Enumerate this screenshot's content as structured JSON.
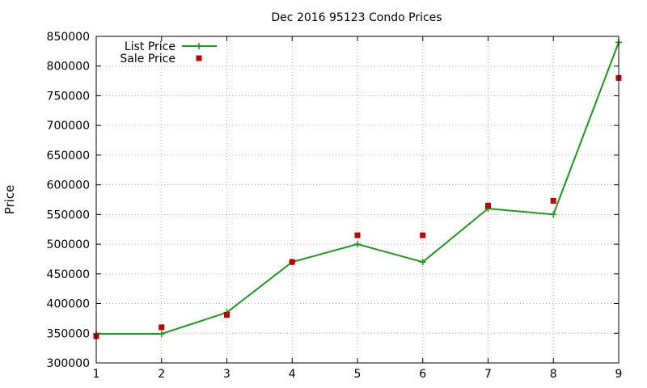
{
  "chart_data": {
    "type": "line",
    "title": "Dec 2016 95123 Condo Prices",
    "xlabel": "",
    "ylabel": "Price",
    "xlim": [
      1,
      9
    ],
    "ylim": [
      300000,
      850000
    ],
    "x_ticks": [
      "1",
      "2",
      "3",
      "4",
      "5",
      "6",
      "7",
      "8",
      "9"
    ],
    "y_ticks": [
      "300000",
      "350000",
      "400000",
      "450000",
      "500000",
      "550000",
      "600000",
      "650000",
      "700000",
      "750000",
      "800000",
      "850000"
    ],
    "grid": true,
    "legend_position": "top-left",
    "series": [
      {
        "name": "List Price",
        "style": "line+cross",
        "color": "#1a9a1a",
        "x": [
          1,
          2,
          3,
          4,
          5,
          6,
          7,
          8,
          9
        ],
        "y": [
          349000,
          349000,
          385000,
          470000,
          500000,
          470000,
          560000,
          550000,
          840000
        ]
      },
      {
        "name": "Sale Price",
        "style": "square",
        "color": "#c00000",
        "x": [
          1,
          2,
          3,
          4,
          5,
          6,
          7,
          8,
          9
        ],
        "y": [
          345000,
          360000,
          381000,
          470000,
          515000,
          515000,
          565000,
          573000,
          780000
        ]
      }
    ]
  }
}
